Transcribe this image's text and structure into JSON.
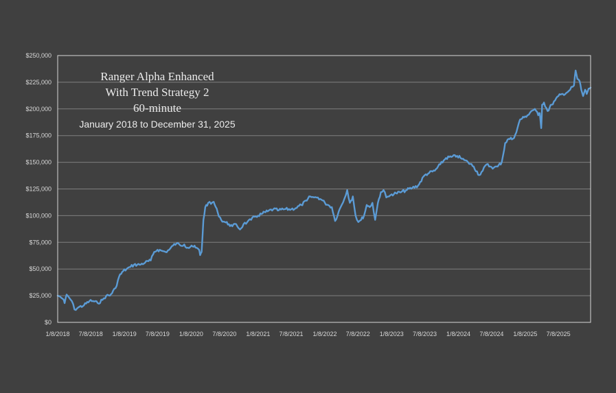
{
  "chart_data": {
    "type": "line",
    "title_lines": [
      "Ranger Alpha Enhanced",
      "With Trend Strategy 2",
      "60-minute"
    ],
    "subtitle": "January 2018 to December 31, 2025",
    "xlabel": "",
    "ylabel": "",
    "ylim": [
      0,
      250000
    ],
    "y_ticks": [
      "$0",
      "$25,000",
      "$50,000",
      "$75,000",
      "$100,000",
      "$125,000",
      "$150,000",
      "$175,000",
      "$200,000",
      "$225,000",
      "$250,000"
    ],
    "x_ticks": [
      "1/8/2018",
      "7/8/2018",
      "1/8/2019",
      "7/8/2019",
      "1/8/2020",
      "7/8/2020",
      "1/8/2021",
      "7/8/2021",
      "1/8/2022",
      "7/8/2022",
      "1/8/2023",
      "7/8/2023",
      "1/8/2024",
      "7/8/2024",
      "1/8/2025",
      "7/8/2025"
    ],
    "grid": true,
    "legend": "none",
    "colors": {
      "background": "#404040",
      "plot_border": "#d9d9d9",
      "grid": "#7f7f7f",
      "line": "#5b9bd5",
      "text": "#d9d9d9",
      "title": "#ececec"
    },
    "series": [
      {
        "x": [
          "2018-01-08",
          "2018-01-22",
          "2018-02-05",
          "2018-02-15",
          "2018-02-26",
          "2018-03-12",
          "2018-03-26",
          "2018-04-10",
          "2018-05-01",
          "2018-06-01",
          "2018-07-01",
          "2018-07-20",
          "2018-08-15",
          "2018-09-10",
          "2018-10-01",
          "2018-10-20",
          "2018-11-20",
          "2018-12-10",
          "2019-01-01",
          "2019-01-20",
          "2019-02-10",
          "2019-03-01",
          "2019-04-01",
          "2019-05-01",
          "2019-06-01",
          "2019-06-20",
          "2019-07-08",
          "2019-08-01",
          "2019-08-20",
          "2019-09-10",
          "2019-10-01",
          "2019-10-20",
          "2019-11-10",
          "2019-12-01",
          "2019-12-20",
          "2020-01-10",
          "2020-02-01",
          "2020-02-20",
          "2020-02-26",
          "2020-03-05",
          "2020-03-15",
          "2020-03-25",
          "2020-04-10",
          "2020-04-25",
          "2020-05-10",
          "2020-06-01",
          "2020-06-20",
          "2020-07-10",
          "2020-08-01",
          "2020-08-20",
          "2020-09-10",
          "2020-10-01",
          "2020-10-20",
          "2020-11-10",
          "2020-12-01",
          "2020-12-20",
          "2021-01-08",
          "2021-02-01",
          "2021-03-01",
          "2021-04-01",
          "2021-05-01",
          "2021-06-01",
          "2021-07-08",
          "2021-08-01",
          "2021-09-01",
          "2021-10-01",
          "2021-10-20",
          "2021-11-10",
          "2021-12-01",
          "2021-12-20",
          "2022-01-08",
          "2022-01-25",
          "2022-02-15",
          "2022-03-05",
          "2022-03-25",
          "2022-04-10",
          "2022-04-25",
          "2022-05-10",
          "2022-05-25",
          "2022-06-10",
          "2022-06-25",
          "2022-07-10",
          "2022-07-25",
          "2022-08-10",
          "2022-08-25",
          "2022-09-10",
          "2022-09-25",
          "2022-10-10",
          "2022-10-25",
          "2022-11-10",
          "2022-11-25",
          "2022-12-10",
          "2022-12-25",
          "2023-01-08",
          "2023-02-01",
          "2023-03-01",
          "2023-04-01",
          "2023-05-01",
          "2023-06-01",
          "2023-07-08",
          "2023-08-01",
          "2023-09-01",
          "2023-10-01",
          "2023-11-01",
          "2023-12-01",
          "2024-01-01",
          "2024-01-20",
          "2024-02-10",
          "2024-03-01",
          "2024-04-01",
          "2024-05-01",
          "2024-05-20",
          "2024-06-10",
          "2024-07-01",
          "2024-07-20",
          "2024-08-10",
          "2024-09-01",
          "2024-09-20",
          "2024-10-10",
          "2024-11-01",
          "2024-11-20",
          "2024-12-10",
          "2025-01-01",
          "2025-01-20",
          "2025-02-10",
          "2025-03-01",
          "2025-03-20",
          "2025-03-28",
          "2025-04-05",
          "2025-04-10",
          "2025-04-20",
          "2025-05-10",
          "2025-06-01",
          "2025-06-20",
          "2025-07-08",
          "2025-08-01",
          "2025-08-20",
          "2025-09-10",
          "2025-10-01",
          "2025-10-10",
          "2025-10-20",
          "2025-11-01",
          "2025-11-10",
          "2025-11-20",
          "2025-12-01",
          "2025-12-10",
          "2025-12-20",
          "2025-12-31"
        ],
        "values": [
          25000,
          24000,
          22000,
          18000,
          26000,
          23000,
          20000,
          12000,
          14000,
          16000,
          20000,
          20000,
          18000,
          21000,
          25000,
          25000,
          32000,
          43000,
          48000,
          50000,
          52000,
          54000,
          54000,
          56000,
          58000,
          66000,
          68000,
          67000,
          66000,
          68000,
          72000,
          74000,
          72000,
          73000,
          70000,
          72000,
          70000,
          68000,
          63000,
          66000,
          96000,
          108000,
          112000,
          111000,
          113000,
          103000,
          96000,
          94000,
          92000,
          90000,
          92000,
          87000,
          92000,
          94000,
          96000,
          99000,
          100000,
          102000,
          104000,
          106000,
          105000,
          106000,
          106000,
          107000,
          110000,
          114000,
          118000,
          117000,
          117000,
          115000,
          112000,
          110000,
          108000,
          95000,
          104000,
          110000,
          116000,
          124000,
          112000,
          118000,
          100000,
          94000,
          96000,
          100000,
          110000,
          108000,
          112000,
          96000,
          112000,
          122000,
          124000,
          117000,
          118000,
          120000,
          121000,
          122000,
          124000,
          126000,
          128000,
          138000,
          140000,
          142000,
          148000,
          154000,
          155000,
          156000,
          154000,
          152000,
          150000,
          146000,
          138000,
          142000,
          148000,
          146000,
          145000,
          146000,
          150000,
          168000,
          172000,
          172000,
          178000,
          190000,
          192000,
          194000,
          198000,
          200000,
          194000,
          196000,
          182000,
          204000,
          206000,
          198000,
          204000,
          208000,
          212000,
          214000,
          215000,
          218000,
          222000,
          236000,
          228000,
          226000,
          218000,
          212000,
          218000,
          214000,
          219000,
          220000
        ]
      }
    ]
  }
}
